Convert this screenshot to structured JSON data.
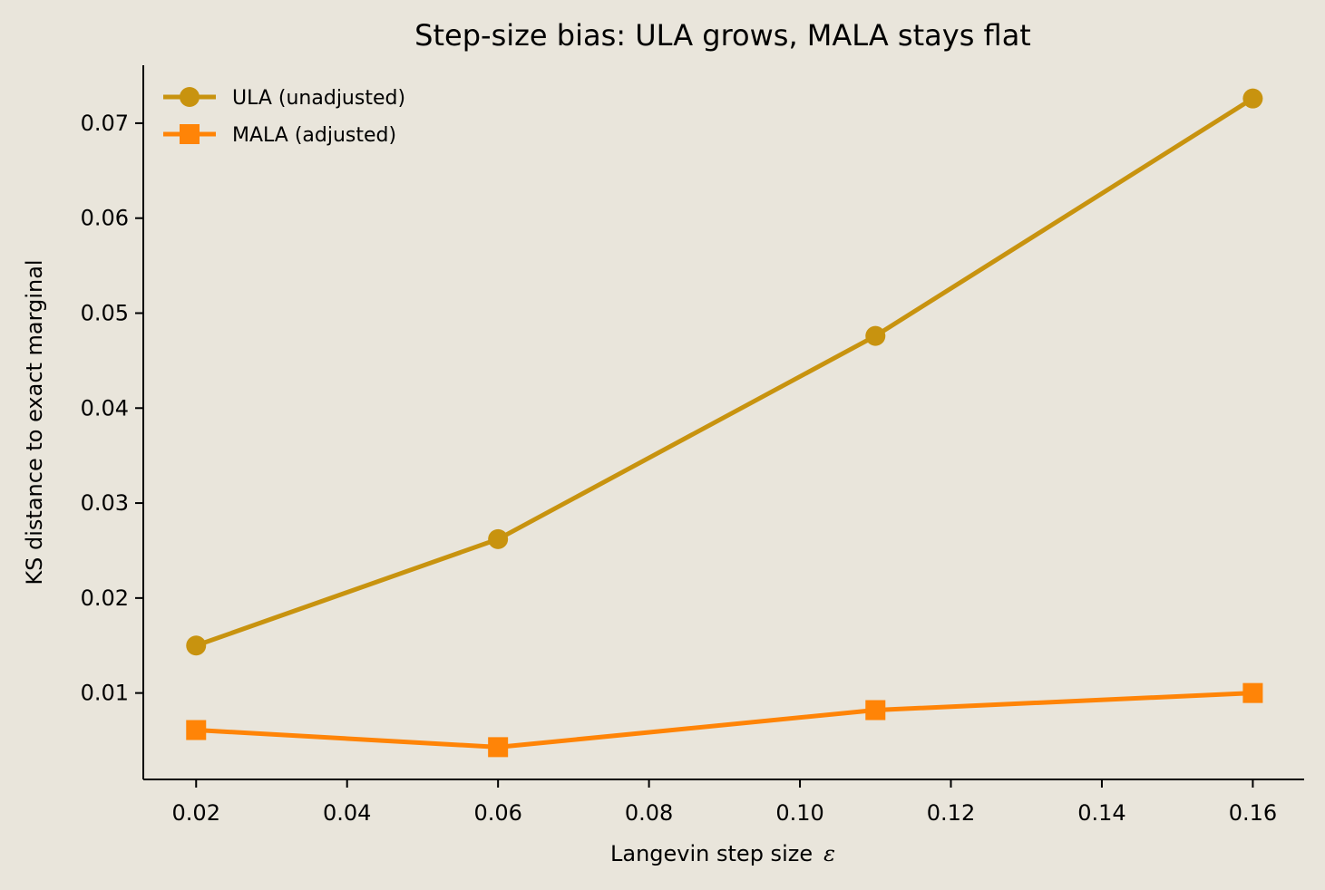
{
  "chart_data": {
    "type": "line",
    "title": "Step-size bias: ULA grows, MALA stays flat",
    "xlabel": "Langevin step size",
    "xlabel_symbol": "ε",
    "ylabel": "KS distance to exact marginal",
    "x": [
      0.02,
      0.06,
      0.11,
      0.16
    ],
    "xlim": [
      0.013,
      0.1668
    ],
    "ylim": [
      0.0009,
      0.0761
    ],
    "xticks": [
      0.02,
      0.04,
      0.06,
      0.08,
      0.1,
      0.12,
      0.14,
      0.16
    ],
    "xtick_labels": [
      "0.02",
      "0.04",
      "0.06",
      "0.08",
      "0.10",
      "0.12",
      "0.14",
      "0.16"
    ],
    "yticks": [
      0.01,
      0.02,
      0.03,
      0.04,
      0.05,
      0.06,
      0.07
    ],
    "ytick_labels": [
      "0.01",
      "0.02",
      "0.03",
      "0.04",
      "0.05",
      "0.06",
      "0.07"
    ],
    "grid": false,
    "legend_position": "top-left",
    "series": [
      {
        "name": "ULA (unadjusted)",
        "marker": "circle",
        "color": "#C8930F",
        "values": [
          0.015,
          0.0262,
          0.0476,
          0.0726
        ]
      },
      {
        "name": "MALA (adjusted)",
        "marker": "square",
        "color": "#FF8407",
        "values": [
          0.0061,
          0.0043,
          0.0082,
          0.01
        ]
      }
    ]
  }
}
